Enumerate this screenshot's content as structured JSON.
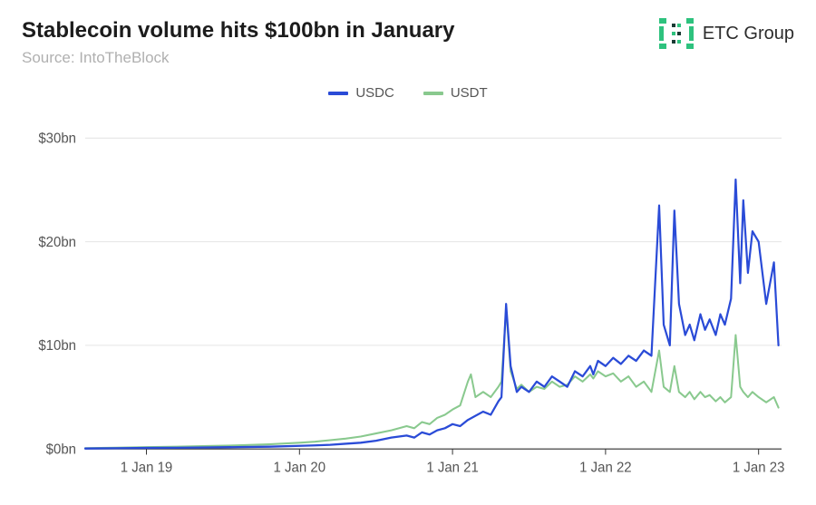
{
  "header": {
    "title": "Stablecoin volume hits $100bn in January",
    "title_fontsize": 24,
    "title_color": "#1c1c1c",
    "subtitle": "Source: IntoTheBlock",
    "subtitle_fontsize": 17,
    "subtitle_color": "#b0b0b0"
  },
  "logo": {
    "text": "ETC Group",
    "text_color": "#2c2c2c",
    "icon_primary": "#2ec27e",
    "icon_dark": "#1a3a33"
  },
  "chart": {
    "type": "line",
    "background_color": "#ffffff",
    "grid_color": "#e5e5e5",
    "axis_color": "#333333",
    "label_color": "#555555",
    "label_fontsize": 15,
    "x": {
      "min": 2018.6,
      "max": 2023.15,
      "ticks": [
        2019,
        2020,
        2021,
        2022,
        2023
      ],
      "tick_labels": [
        "1 Jan 19",
        "1 Jan 20",
        "1 Jan 21",
        "1 Jan 22",
        "1 Jan 23"
      ]
    },
    "y": {
      "min": 0,
      "max": 32,
      "ticks": [
        0,
        10,
        20,
        30
      ],
      "tick_labels": [
        "$0bn",
        "$10bn",
        "$20bn",
        "$30bn"
      ]
    },
    "legend": {
      "items": [
        "USDC",
        "USDT"
      ]
    },
    "series": [
      {
        "name": "USDC",
        "color": "#2a4bd7",
        "line_width": 2.2,
        "data": [
          [
            2018.6,
            0.05
          ],
          [
            2018.8,
            0.07
          ],
          [
            2019.0,
            0.1
          ],
          [
            2019.2,
            0.12
          ],
          [
            2019.4,
            0.15
          ],
          [
            2019.6,
            0.18
          ],
          [
            2019.8,
            0.22
          ],
          [
            2020.0,
            0.3
          ],
          [
            2020.1,
            0.35
          ],
          [
            2020.2,
            0.4
          ],
          [
            2020.3,
            0.5
          ],
          [
            2020.4,
            0.6
          ],
          [
            2020.5,
            0.8
          ],
          [
            2020.6,
            1.1
          ],
          [
            2020.7,
            1.3
          ],
          [
            2020.75,
            1.1
          ],
          [
            2020.8,
            1.6
          ],
          [
            2020.85,
            1.4
          ],
          [
            2020.9,
            1.8
          ],
          [
            2020.95,
            2.0
          ],
          [
            2021.0,
            2.4
          ],
          [
            2021.05,
            2.2
          ],
          [
            2021.1,
            2.8
          ],
          [
            2021.15,
            3.2
          ],
          [
            2021.2,
            3.6
          ],
          [
            2021.25,
            3.3
          ],
          [
            2021.3,
            4.6
          ],
          [
            2021.32,
            5.0
          ],
          [
            2021.35,
            14.0
          ],
          [
            2021.38,
            8.0
          ],
          [
            2021.42,
            5.5
          ],
          [
            2021.45,
            6.0
          ],
          [
            2021.5,
            5.5
          ],
          [
            2021.55,
            6.5
          ],
          [
            2021.6,
            6.0
          ],
          [
            2021.65,
            7.0
          ],
          [
            2021.7,
            6.5
          ],
          [
            2021.75,
            6.0
          ],
          [
            2021.8,
            7.5
          ],
          [
            2021.85,
            7.0
          ],
          [
            2021.9,
            8.0
          ],
          [
            2021.92,
            7.2
          ],
          [
            2021.95,
            8.5
          ],
          [
            2022.0,
            8.0
          ],
          [
            2022.05,
            8.8
          ],
          [
            2022.1,
            8.2
          ],
          [
            2022.15,
            9.0
          ],
          [
            2022.2,
            8.5
          ],
          [
            2022.25,
            9.5
          ],
          [
            2022.3,
            9.0
          ],
          [
            2022.35,
            23.5
          ],
          [
            2022.38,
            12.0
          ],
          [
            2022.42,
            10.0
          ],
          [
            2022.45,
            23.0
          ],
          [
            2022.48,
            14.0
          ],
          [
            2022.52,
            11.0
          ],
          [
            2022.55,
            12.0
          ],
          [
            2022.58,
            10.5
          ],
          [
            2022.62,
            13.0
          ],
          [
            2022.65,
            11.5
          ],
          [
            2022.68,
            12.5
          ],
          [
            2022.72,
            11.0
          ],
          [
            2022.75,
            13.0
          ],
          [
            2022.78,
            12.0
          ],
          [
            2022.82,
            14.5
          ],
          [
            2022.85,
            26.0
          ],
          [
            2022.88,
            16.0
          ],
          [
            2022.9,
            24.0
          ],
          [
            2022.93,
            17.0
          ],
          [
            2022.96,
            21.0
          ],
          [
            2023.0,
            20.0
          ],
          [
            2023.05,
            14.0
          ],
          [
            2023.1,
            18.0
          ],
          [
            2023.13,
            10.0
          ]
        ]
      },
      {
        "name": "USDT",
        "color": "#89c98e",
        "line_width": 2.0,
        "data": [
          [
            2018.6,
            0.08
          ],
          [
            2018.8,
            0.12
          ],
          [
            2019.0,
            0.18
          ],
          [
            2019.2,
            0.22
          ],
          [
            2019.4,
            0.28
          ],
          [
            2019.6,
            0.35
          ],
          [
            2019.8,
            0.45
          ],
          [
            2020.0,
            0.6
          ],
          [
            2020.1,
            0.7
          ],
          [
            2020.2,
            0.85
          ],
          [
            2020.3,
            1.0
          ],
          [
            2020.4,
            1.2
          ],
          [
            2020.5,
            1.5
          ],
          [
            2020.6,
            1.8
          ],
          [
            2020.7,
            2.2
          ],
          [
            2020.75,
            2.0
          ],
          [
            2020.8,
            2.6
          ],
          [
            2020.85,
            2.4
          ],
          [
            2020.9,
            3.0
          ],
          [
            2020.95,
            3.3
          ],
          [
            2021.0,
            3.8
          ],
          [
            2021.05,
            4.2
          ],
          [
            2021.1,
            6.5
          ],
          [
            2021.12,
            7.2
          ],
          [
            2021.15,
            5.0
          ],
          [
            2021.2,
            5.5
          ],
          [
            2021.25,
            5.0
          ],
          [
            2021.3,
            6.0
          ],
          [
            2021.32,
            6.5
          ],
          [
            2021.35,
            13.5
          ],
          [
            2021.38,
            7.5
          ],
          [
            2021.42,
            5.8
          ],
          [
            2021.45,
            6.2
          ],
          [
            2021.5,
            5.5
          ],
          [
            2021.55,
            6.0
          ],
          [
            2021.6,
            5.8
          ],
          [
            2021.65,
            6.5
          ],
          [
            2021.7,
            6.0
          ],
          [
            2021.75,
            6.2
          ],
          [
            2021.8,
            7.0
          ],
          [
            2021.85,
            6.5
          ],
          [
            2021.9,
            7.2
          ],
          [
            2021.92,
            6.8
          ],
          [
            2021.95,
            7.5
          ],
          [
            2022.0,
            7.0
          ],
          [
            2022.05,
            7.3
          ],
          [
            2022.1,
            6.5
          ],
          [
            2022.15,
            7.0
          ],
          [
            2022.2,
            6.0
          ],
          [
            2022.25,
            6.5
          ],
          [
            2022.3,
            5.5
          ],
          [
            2022.35,
            9.5
          ],
          [
            2022.38,
            6.0
          ],
          [
            2022.42,
            5.5
          ],
          [
            2022.45,
            8.0
          ],
          [
            2022.48,
            5.5
          ],
          [
            2022.52,
            5.0
          ],
          [
            2022.55,
            5.5
          ],
          [
            2022.58,
            4.8
          ],
          [
            2022.62,
            5.5
          ],
          [
            2022.65,
            5.0
          ],
          [
            2022.68,
            5.2
          ],
          [
            2022.72,
            4.6
          ],
          [
            2022.75,
            5.0
          ],
          [
            2022.78,
            4.5
          ],
          [
            2022.82,
            5.0
          ],
          [
            2022.85,
            11.0
          ],
          [
            2022.88,
            6.0
          ],
          [
            2022.9,
            5.5
          ],
          [
            2022.93,
            5.0
          ],
          [
            2022.96,
            5.5
          ],
          [
            2023.0,
            5.0
          ],
          [
            2023.05,
            4.5
          ],
          [
            2023.1,
            5.0
          ],
          [
            2023.13,
            4.0
          ]
        ]
      }
    ]
  }
}
